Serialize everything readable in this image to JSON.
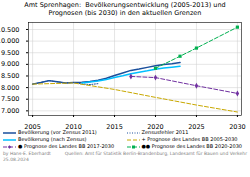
{
  "chart_data": {
    "type": "line",
    "title": "Amt Sprenhagen:  Bevölkerungsentwicklung (2005-2013) und\nPrognosen (bis 2030) in den aktuellen Grenzen",
    "xlim": [
      2004.5,
      2030.5
    ],
    "xticks": [
      2005,
      2010,
      2015,
      2020,
      2025,
      2030
    ],
    "ylim": [
      6800,
      10800
    ],
    "yticks": [
      {
        "value": 7000,
        "label": "7.000"
      },
      {
        "value": 7500,
        "label": "7.500"
      },
      {
        "value": 8000,
        "label": "8.000"
      },
      {
        "value": 8500,
        "label": "8.500"
      },
      {
        "value": 9000,
        "label": "9.000"
      },
      {
        "value": 9500,
        "label": "9.500"
      },
      {
        "value": 10000,
        "label": "10.000"
      },
      {
        "value": 10500,
        "label": "10.500"
      }
    ],
    "grid": true,
    "legend": "bottom",
    "series": [
      {
        "name": "Bevölkerung (vor Zensus 2011)",
        "color": "#1a4f9c",
        "line_style": "solid",
        "x": [
          2005,
          2006,
          2007,
          2008,
          2009,
          2010,
          2011,
          2012,
          2013,
          2014,
          2015,
          2016,
          2017,
          2018,
          2019,
          2020,
          2021,
          2022,
          2023
        ],
        "values": [
          8150,
          8220,
          8300,
          8250,
          8200,
          8220,
          8230,
          8260,
          8320,
          8400,
          8520,
          8630,
          8740,
          8800,
          8870,
          8940,
          8990,
          9030,
          9080
        ]
      },
      {
        "name": "Zensusfehler 2011",
        "color": "#1a4f9c",
        "line_style": "dotted",
        "x": [
          2005,
          2006,
          2007,
          2008,
          2009,
          2010,
          2011,
          2012,
          2013
        ],
        "values": [
          8150,
          8220,
          8300,
          8250,
          8200,
          8220,
          8160,
          8130,
          8170
        ]
      },
      {
        "name": "Bevölkerung (nach Zensus)",
        "color": "#00bfff",
        "line_style": "solid",
        "x": [
          2011,
          2012,
          2013,
          2014,
          2015,
          2016,
          2017,
          2018,
          2019,
          2020,
          2021,
          2022,
          2023
        ],
        "values": [
          8200,
          8240,
          8280,
          8350,
          8430,
          8510,
          8600,
          8660,
          8720,
          8790,
          8840,
          8880,
          8920
        ]
      },
      {
        "name": "+ Prognose des Landes BB 2005-2030",
        "color": "#c8a800",
        "line_style": "dashed",
        "x": [
          2005,
          2010,
          2015,
          2020,
          2025,
          2030
        ],
        "values": [
          8150,
          8200,
          7920,
          7580,
          7250,
          6950
        ]
      },
      {
        "name": "● Prognose des Landes BB 2017-2030",
        "color": "#7030a0",
        "line_style": "dashed",
        "marker": "diamond",
        "x": [
          2017,
          2020,
          2025,
          2030
        ],
        "values": [
          8480,
          8430,
          8080,
          7750
        ]
      },
      {
        "name": "●● Prognose des Landes BB 2020-2030",
        "color": "#00b050",
        "line_style": "dashed",
        "marker": "square",
        "x": [
          2020,
          2023,
          2025,
          2030
        ],
        "values": [
          8830,
          9350,
          9700,
          10600
        ]
      }
    ],
    "annotations": [
      "by Hans-E. Eberhardt",
      "Quellen: Amt für Statistik Berlin-Brandenburg, Landesamt für Bauen und Verkehr",
      "25.08.2024"
    ]
  }
}
